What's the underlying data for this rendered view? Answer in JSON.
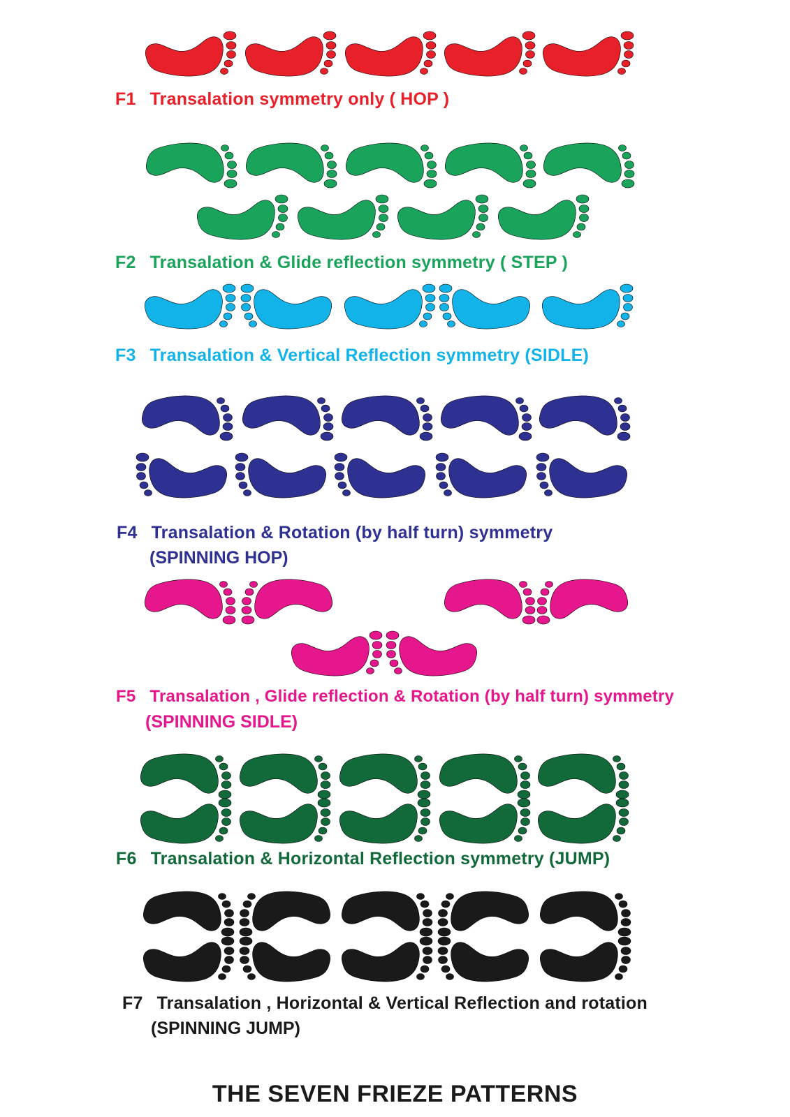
{
  "title": "THE SEVEN FRIEZE PATTERNS",
  "patterns": [
    {
      "code": "F1",
      "label": "Transalation  symmetry only   ( HOP )",
      "sublabel": "",
      "color": "#e8202a"
    },
    {
      "code": "F2",
      "label": "Transalation  & Glide reflection symmetry  ( STEP )",
      "sublabel": "",
      "color": "#1aa35a"
    },
    {
      "code": "F3",
      "label": "Transalation  &  Vertical  Reflection symmetry  (SIDLE)",
      "sublabel": "",
      "color": "#12b3e8"
    },
    {
      "code": "F4",
      "label": "Transalation  &  Rotation (by half turn)  symmetry",
      "sublabel": "(SPINNING HOP)",
      "color": "#2e3192"
    },
    {
      "code": "F5",
      "label": "Transalation , Glide reflection  &  Rotation (by half turn) symmetry",
      "sublabel": "(SPINNING SIDLE)",
      "color": "#e6168c"
    },
    {
      "code": "F6",
      "label": "Transalation  &  Horizontal Reflection  symmetry (JUMP)",
      "sublabel": "",
      "color": "#12693a"
    },
    {
      "code": "F7",
      "label": "Transalation   , Horizontal  &  Vertical  Reflection  and rotation",
      "sublabel": "(SPINNING JUMP)",
      "color": "#1a1a1a"
    }
  ],
  "icon": "footprint-icon"
}
